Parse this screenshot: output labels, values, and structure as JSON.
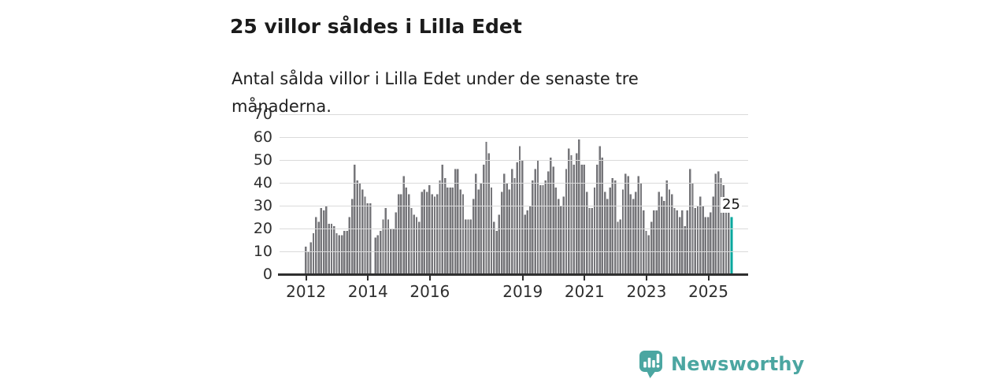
{
  "header": {
    "title": "25 villor såldes i Lilla Edet",
    "subtitle": "Antal sålda villor i Lilla Edet under de senaste tre månaderna."
  },
  "branding": {
    "name": "Newsworthy",
    "logo_icon": "speech-bubble-bar-chart-icon"
  },
  "colors": {
    "bar": "#76767a",
    "highlight": "#00a79d",
    "grid": "#dadada",
    "axis": "#2f2f2f",
    "brand": "#4ba6a1",
    "text": "#1b1b1b"
  },
  "chart_data": {
    "type": "bar",
    "title": "25 villor såldes i Lilla Edet",
    "subtitle": "Antal sålda villor i Lilla Edet under de senaste tre månaderna.",
    "frequency": "monthly",
    "start": "2012-01",
    "grid": true,
    "ylim": [
      0,
      70
    ],
    "y_ticks": [
      0,
      10,
      20,
      30,
      40,
      50,
      60,
      70
    ],
    "x_ticks": [
      {
        "label": "2012",
        "month": 0
      },
      {
        "label": "2014",
        "month": 24
      },
      {
        "label": "2016",
        "month": 48
      },
      {
        "label": "2019",
        "month": 84
      },
      {
        "label": "2021",
        "month": 108
      },
      {
        "label": "2023",
        "month": 132
      },
      {
        "label": "2025",
        "month": 156
      }
    ],
    "highlight_last": true,
    "last_value_label": "25",
    "values": [
      12,
      10,
      14,
      18,
      25,
      23,
      29,
      28,
      30,
      22,
      22,
      21,
      18,
      17,
      17,
      19,
      19,
      25,
      33,
      48,
      41,
      40,
      37,
      34,
      31,
      31,
      0,
      16,
      17,
      19,
      24,
      29,
      24,
      20,
      20,
      27,
      35,
      35,
      43,
      38,
      35,
      29,
      26,
      25,
      23,
      36,
      37,
      36,
      39,
      35,
      34,
      35,
      41,
      48,
      42,
      38,
      38,
      38,
      46,
      46,
      37,
      35,
      24,
      24,
      24,
      33,
      44,
      37,
      40,
      48,
      58,
      53,
      38,
      23,
      19,
      26,
      36,
      44,
      40,
      37,
      46,
      42,
      49,
      56,
      50,
      26,
      28,
      30,
      41,
      46,
      50,
      39,
      39,
      41,
      45,
      51,
      47,
      38,
      33,
      30,
      34,
      46,
      55,
      52,
      48,
      53,
      59,
      48,
      48,
      36,
      29,
      29,
      38,
      48,
      56,
      51,
      36,
      33,
      38,
      42,
      41,
      23,
      24,
      37,
      44,
      43,
      35,
      33,
      36,
      43,
      40,
      28,
      19,
      17,
      23,
      28,
      28,
      36,
      34,
      32,
      41,
      37,
      35,
      29,
      28,
      25,
      28,
      21,
      28,
      46,
      40,
      29,
      30,
      34,
      30,
      25,
      25,
      27,
      34,
      44,
      45,
      42,
      39,
      28,
      27,
      25
    ]
  }
}
